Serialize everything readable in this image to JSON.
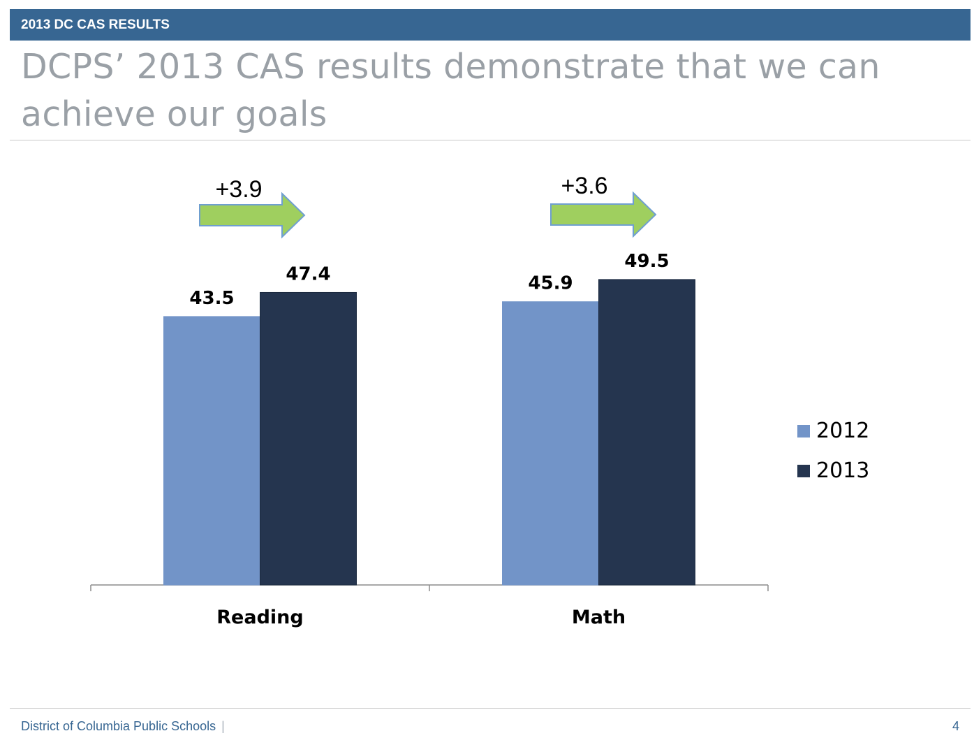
{
  "header": {
    "section_label": "2013 DC CAS RESULTS"
  },
  "slide": {
    "title": "DCPS’ 2013 CAS results demonstrate that we can achieve our goals"
  },
  "footer": {
    "organization": "District of Columbia Public Schools",
    "separator": "|",
    "page_number": "4"
  },
  "colors": {
    "header_bar": "#376692",
    "series_2012": "#7294c8",
    "series_2013": "#25354f",
    "arrow_fill": "#9fcf5f",
    "arrow_stroke": "#6f9fd0"
  },
  "chart_data": {
    "type": "bar",
    "categories": [
      "Reading",
      "Math"
    ],
    "series": [
      {
        "name": "2012",
        "values": [
          43.5,
          45.9
        ],
        "labels": [
          "43.5",
          "45.9"
        ]
      },
      {
        "name": "2013",
        "values": [
          47.4,
          49.5
        ],
        "labels": [
          "47.4",
          "49.5"
        ]
      }
    ],
    "annotations": [
      {
        "category": "Reading",
        "text": "+3.9",
        "marker": "right-arrow"
      },
      {
        "category": "Math",
        "text": "+3.6",
        "marker": "right-arrow"
      }
    ],
    "title": "",
    "xlabel": "",
    "ylabel": "",
    "ylim": [
      0,
      50
    ],
    "grid": false,
    "legend_position": "right"
  }
}
